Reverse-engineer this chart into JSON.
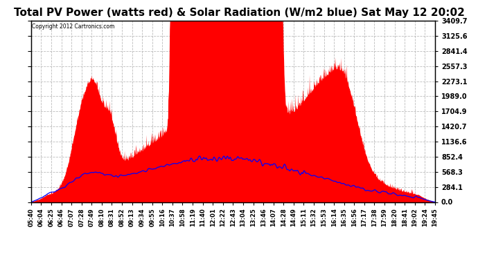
{
  "title": "Total PV Power (watts red) & Solar Radiation (W/m2 blue) Sat May 12 20:02",
  "copyright_text": "Copyright 2012 Cartronics.com",
  "y_max": 3409.7,
  "y_min": 0.0,
  "y_ticks": [
    0.0,
    284.1,
    568.3,
    852.4,
    1136.6,
    1420.7,
    1704.9,
    1989.0,
    2273.1,
    2557.3,
    2841.4,
    3125.6,
    3409.7
  ],
  "background_color": "#ffffff",
  "plot_bg_color": "#ffffff",
  "grid_color": "#aaaaaa",
  "red_color": "#ff0000",
  "blue_color": "#0000ff",
  "title_fontsize": 11,
  "x_labels": [
    "05:40",
    "06:04",
    "06:25",
    "06:46",
    "07:07",
    "07:28",
    "07:49",
    "08:10",
    "08:31",
    "08:52",
    "09:13",
    "09:34",
    "09:55",
    "10:16",
    "10:37",
    "10:58",
    "11:19",
    "11:40",
    "12:01",
    "12:22",
    "12:43",
    "13:04",
    "13:25",
    "13:46",
    "14:07",
    "14:28",
    "14:49",
    "15:11",
    "15:32",
    "15:53",
    "16:14",
    "16:35",
    "16:56",
    "17:17",
    "17:38",
    "17:59",
    "18:20",
    "18:41",
    "19:02",
    "19:24",
    "19:45"
  ]
}
